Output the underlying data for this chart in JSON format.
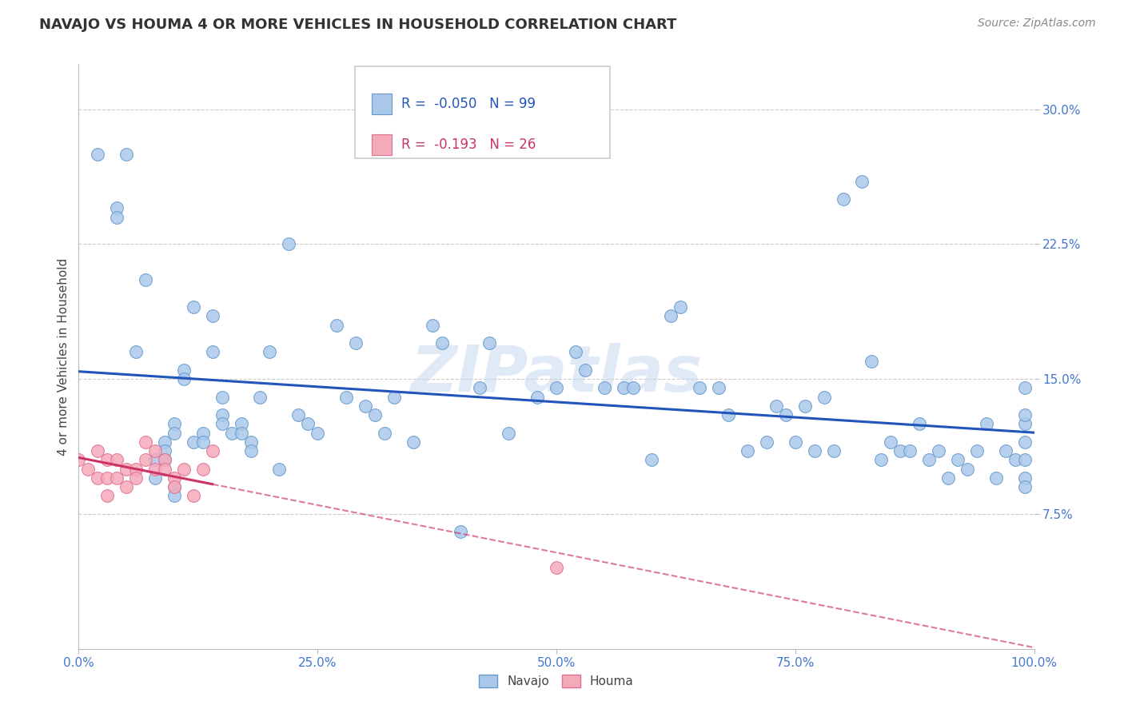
{
  "title": "NAVAJO VS HOUMA 4 OR MORE VEHICLES IN HOUSEHOLD CORRELATION CHART",
  "source_text": "Source: ZipAtlas.com",
  "ylabel": "4 or more Vehicles in Household",
  "xlim": [
    0,
    100
  ],
  "ylim": [
    0,
    32.5
  ],
  "xticks": [
    0,
    25,
    50,
    75,
    100
  ],
  "xticklabels": [
    "0.0%",
    "25.0%",
    "50.0%",
    "75.0%",
    "100.0%"
  ],
  "yticks": [
    7.5,
    15.0,
    22.5,
    30.0
  ],
  "yticklabels": [
    "7.5%",
    "15.0%",
    "22.5%",
    "30.0%"
  ],
  "grid_color": "#cccccc",
  "navajo_color": "#aac8ea",
  "houma_color": "#f5aaba",
  "navajo_edge": "#6699cc",
  "houma_edge": "#e07090",
  "regression_navajo_color": "#2255bb",
  "regression_houma_color": "#cc3366",
  "watermark": "ZIPatlas",
  "navajo_R": -0.05,
  "navajo_N": 99,
  "houma_R": -0.193,
  "houma_N": 26,
  "navajo_x": [
    2,
    4,
    4,
    5,
    6,
    7,
    8,
    8,
    9,
    9,
    9,
    10,
    10,
    10,
    10,
    11,
    11,
    12,
    12,
    13,
    13,
    14,
    14,
    15,
    15,
    15,
    16,
    17,
    17,
    18,
    18,
    19,
    20,
    21,
    22,
    23,
    24,
    25,
    27,
    28,
    29,
    30,
    31,
    32,
    33,
    35,
    37,
    38,
    40,
    42,
    43,
    45,
    48,
    50,
    52,
    53,
    55,
    57,
    58,
    60,
    62,
    63,
    65,
    67,
    68,
    70,
    72,
    73,
    74,
    75,
    76,
    77,
    78,
    79,
    80,
    82,
    83,
    84,
    85,
    86,
    87,
    88,
    89,
    90,
    91,
    92,
    93,
    94,
    95,
    96,
    97,
    98,
    99,
    99,
    99,
    99,
    99,
    99,
    99
  ],
  "navajo_y": [
    27.5,
    24.5,
    24.0,
    27.5,
    16.5,
    20.5,
    10.5,
    9.5,
    11.5,
    11.0,
    10.5,
    12.5,
    12.0,
    9.0,
    8.5,
    15.5,
    15.0,
    19.0,
    11.5,
    12.0,
    11.5,
    18.5,
    16.5,
    14.0,
    13.0,
    12.5,
    12.0,
    12.5,
    12.0,
    11.5,
    11.0,
    14.0,
    16.5,
    10.0,
    22.5,
    13.0,
    12.5,
    12.0,
    18.0,
    14.0,
    17.0,
    13.5,
    13.0,
    12.0,
    14.0,
    11.5,
    18.0,
    17.0,
    6.5,
    14.5,
    17.0,
    12.0,
    14.0,
    14.5,
    16.5,
    15.5,
    14.5,
    14.5,
    14.5,
    10.5,
    18.5,
    19.0,
    14.5,
    14.5,
    13.0,
    11.0,
    11.5,
    13.5,
    13.0,
    11.5,
    13.5,
    11.0,
    14.0,
    11.0,
    25.0,
    26.0,
    16.0,
    10.5,
    11.5,
    11.0,
    11.0,
    12.5,
    10.5,
    11.0,
    9.5,
    10.5,
    10.0,
    11.0,
    12.5,
    9.5,
    11.0,
    10.5,
    12.5,
    11.5,
    10.5,
    9.5,
    9.0,
    14.5,
    13.0
  ],
  "houma_x": [
    0,
    1,
    2,
    2,
    3,
    3,
    3,
    4,
    4,
    5,
    5,
    6,
    6,
    7,
    7,
    8,
    8,
    9,
    9,
    10,
    10,
    11,
    12,
    13,
    14,
    50
  ],
  "houma_y": [
    10.5,
    10.0,
    11.0,
    9.5,
    10.5,
    9.5,
    8.5,
    10.5,
    9.5,
    10.0,
    9.0,
    10.0,
    9.5,
    11.5,
    10.5,
    11.0,
    10.0,
    10.5,
    10.0,
    9.5,
    9.0,
    10.0,
    8.5,
    10.0,
    11.0,
    4.5
  ]
}
